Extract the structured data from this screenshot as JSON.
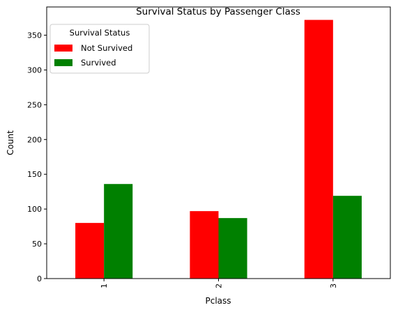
{
  "chart_data": {
    "type": "bar",
    "title": "Survival Status by Passenger Class",
    "xlabel": "Pclass",
    "ylabel": "Count",
    "categories": [
      "1",
      "2",
      "3"
    ],
    "series": [
      {
        "name": "Not Survived",
        "values": [
          80,
          97,
          372
        ],
        "color": "#ff0000"
      },
      {
        "name": "Survived",
        "values": [
          136,
          87,
          119
        ],
        "color": "#008000"
      }
    ],
    "ylim": [
      0,
      390.6
    ],
    "yticks": [
      0,
      50,
      100,
      150,
      200,
      250,
      300,
      350
    ],
    "legend": {
      "title": "Survival Status",
      "placement": "top-left"
    },
    "grid": false
  }
}
